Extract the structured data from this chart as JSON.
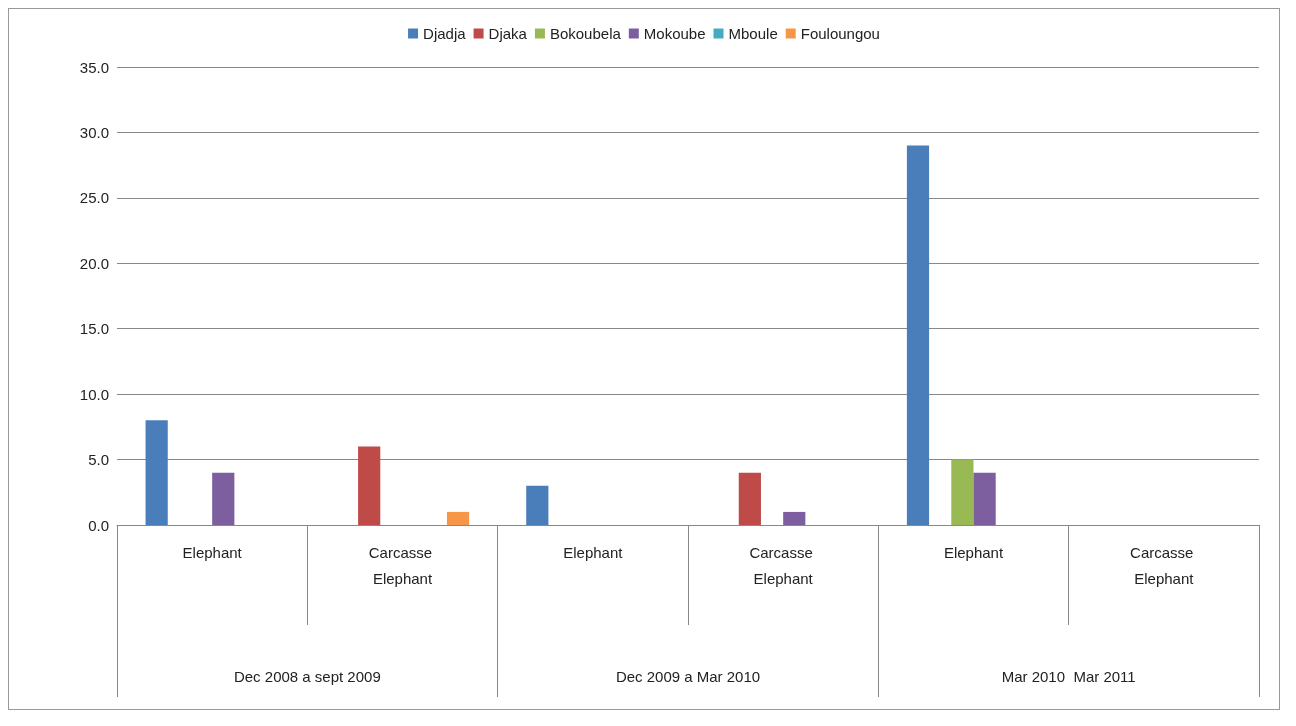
{
  "chart_data": {
    "type": "bar",
    "categories": [
      "Elephant",
      "Carcasse Elephant",
      "Elephant",
      "Carcasse Elephant",
      "Elephant",
      "Carcasse Elephant"
    ],
    "annotations": [
      "Dec 2008 a sept 2009",
      "Dec 2009 a Mar 2010",
      "Mar 2010  Mar 2011"
    ],
    "series": [
      {
        "name": "Djadja",
        "color": "#4a7ebb",
        "values": [
          8,
          0,
          3,
          0,
          29,
          0
        ]
      },
      {
        "name": "Djaka",
        "color": "#be4b48",
        "values": [
          0,
          6,
          0,
          4,
          0,
          0
        ]
      },
      {
        "name": "Bokoubela",
        "color": "#98b954",
        "values": [
          0,
          0,
          0,
          0,
          5,
          0
        ]
      },
      {
        "name": "Mokoube",
        "color": "#7d5fa0",
        "values": [
          4,
          0,
          0,
          1,
          4,
          0
        ]
      },
      {
        "name": "Mboule",
        "color": "#46aac5",
        "values": [
          0,
          0,
          0,
          0,
          0,
          0
        ]
      },
      {
        "name": "Fouloungou",
        "color": "#f79646",
        "values": [
          0,
          1,
          0,
          0,
          0,
          0
        ]
      }
    ],
    "ylim": [
      0,
      35
    ],
    "yticks": [
      {
        "value": 0,
        "label": "0.0"
      },
      {
        "value": 5,
        "label": "5.0"
      },
      {
        "value": 10,
        "label": "10.0"
      },
      {
        "value": 15,
        "label": "15.0"
      },
      {
        "value": 20,
        "label": "20.0"
      },
      {
        "value": 25,
        "label": "25.0"
      },
      {
        "value": 30,
        "label": "30.0"
      },
      {
        "value": 35,
        "label": "35.0"
      }
    ],
    "grid": "y",
    "legend": "top"
  }
}
